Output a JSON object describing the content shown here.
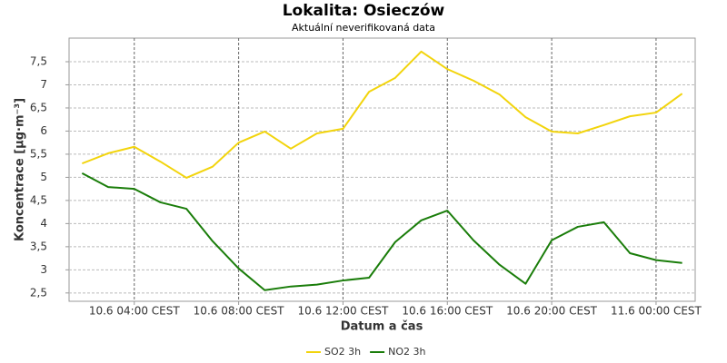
{
  "chart_data": {
    "type": "line",
    "title": "Lokalita: Osieczów",
    "subtitle": "Aktuální neverifikovaná data",
    "xlabel": "Datum a čas",
    "ylabel": "Koncentrace [µg·m⁻³]",
    "categories": [
      null,
      null,
      "10.6 04:00 CEST",
      null,
      null,
      null,
      "10.6 08:00 CEST",
      null,
      null,
      null,
      "10.6 12:00 CEST",
      null,
      null,
      null,
      "10.6 16:00 CEST",
      null,
      null,
      null,
      "10.6 20:00 CEST",
      null,
      null,
      null,
      "11.6 00:00 CEST",
      null
    ],
    "series": [
      {
        "name": "SO2 3h",
        "color": "#f2d40c",
        "values": [
          5.3,
          5.52,
          5.66,
          5.34,
          4.99,
          5.23,
          5.75,
          5.99,
          5.62,
          5.95,
          6.05,
          6.85,
          7.15,
          7.72,
          7.34,
          7.09,
          6.79,
          6.3,
          5.99,
          5.95,
          6.13,
          6.32,
          6.4,
          6.81
        ]
      },
      {
        "name": "NO2 3h",
        "color": "#1a7d0a",
        "values": [
          5.09,
          4.79,
          4.75,
          4.46,
          4.32,
          3.62,
          3.03,
          2.56,
          2.64,
          2.68,
          2.77,
          2.83,
          3.6,
          4.07,
          4.28,
          3.64,
          3.11,
          2.7,
          3.64,
          3.93,
          4.03,
          3.36,
          3.21,
          3.15
        ]
      }
    ],
    "ylim": [
      2.32,
      8.01
    ],
    "yticks": [
      {
        "value": 2.5,
        "label": "2,5"
      },
      3,
      {
        "value": 3.5,
        "label": "3,5"
      },
      4,
      {
        "value": 4.5,
        "label": "4,5"
      },
      5,
      {
        "value": 5.5,
        "label": "5,5"
      },
      6,
      {
        "value": 6.5,
        "label": "6,5"
      },
      7,
      {
        "value": 7.5,
        "label": "7,5"
      }
    ],
    "grid": true,
    "legend": "bottom"
  }
}
